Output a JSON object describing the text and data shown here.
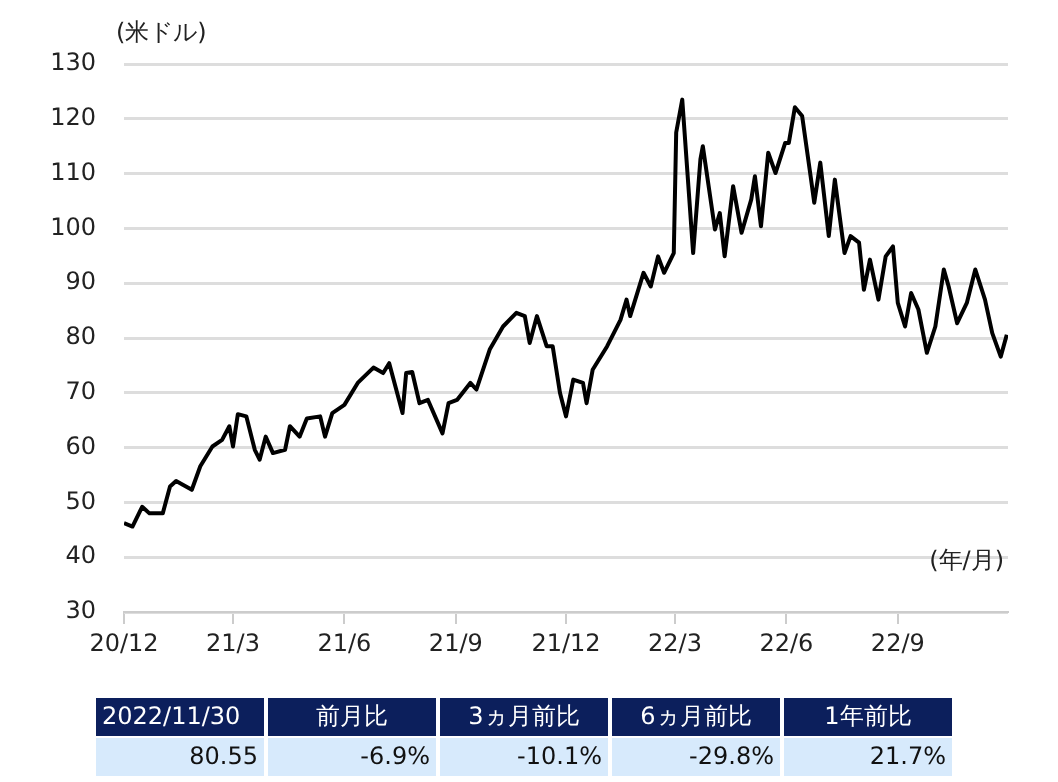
{
  "chart_data": {
    "type": "line",
    "ylabel": "(米ドル)",
    "xlabel": "(年/月)",
    "x": [
      "2020-12-01",
      "2020-12-08",
      "2020-12-16",
      "2020-12-22",
      "2021-01-02",
      "2021-01-08",
      "2021-01-13",
      "2021-01-26",
      "2021-02-02",
      "2021-02-12",
      "2021-02-20",
      "2021-02-26",
      "2021-03-01",
      "2021-03-05",
      "2021-03-12",
      "2021-03-19",
      "2021-03-23",
      "2021-03-28",
      "2021-04-03",
      "2021-04-13",
      "2021-04-17",
      "2021-04-25",
      "2021-05-01",
      "2021-05-12",
      "2021-05-16",
      "2021-05-22",
      "2021-06-01",
      "2021-06-12",
      "2021-06-25",
      "2021-07-03",
      "2021-07-08",
      "2021-07-19",
      "2021-07-22",
      "2021-07-27",
      "2021-08-02",
      "2021-08-09",
      "2021-08-21",
      "2021-08-26",
      "2021-09-02",
      "2021-09-13",
      "2021-09-18",
      "2021-09-29",
      "2021-10-10",
      "2021-10-21",
      "2021-10-28",
      "2021-11-01",
      "2021-11-07",
      "2021-11-15",
      "2021-11-20",
      "2021-11-26",
      "2021-12-01",
      "2021-12-07",
      "2021-12-15",
      "2021-12-18",
      "2021-12-23",
      "2022-01-04",
      "2022-01-15",
      "2022-01-20",
      "2022-01-23",
      "2022-02-03",
      "2022-02-09",
      "2022-02-15",
      "2022-02-20",
      "2022-02-28",
      "2022-03-02",
      "2022-03-07",
      "2022-03-16",
      "2022-03-22",
      "2022-03-24",
      "2022-04-03",
      "2022-04-07",
      "2022-04-11",
      "2022-04-18",
      "2022-04-25",
      "2022-05-03",
      "2022-05-06",
      "2022-05-11",
      "2022-05-17",
      "2022-05-23",
      "2022-05-31",
      "2022-06-03",
      "2022-06-08",
      "2022-06-14",
      "2022-06-21",
      "2022-06-24",
      "2022-06-29",
      "2022-07-06",
      "2022-07-11",
      "2022-07-19",
      "2022-07-24",
      "2022-07-31",
      "2022-08-04",
      "2022-08-09",
      "2022-08-16",
      "2022-08-22",
      "2022-08-28",
      "2022-09-01",
      "2022-09-07",
      "2022-09-12",
      "2022-09-18",
      "2022-09-25",
      "2022-10-02",
      "2022-10-09",
      "2022-10-13",
      "2022-10-20",
      "2022-10-28",
      "2022-11-04",
      "2022-11-12",
      "2022-11-18",
      "2022-11-25",
      "2022-11-30"
    ],
    "series": [
      {
        "color": "#000000",
        "values": [
          46.2,
          45.6,
          49.2,
          48,
          48,
          52.9,
          53.9,
          52.3,
          56.6,
          60.2,
          61.4,
          63.9,
          60.2,
          66.1,
          65.7,
          59.6,
          57.8,
          62,
          59,
          59.6,
          63.9,
          62,
          65.3,
          65.7,
          62,
          66.3,
          67.8,
          71.8,
          74.6,
          73.6,
          75.4,
          66.3,
          73.6,
          73.8,
          68.1,
          68.7,
          62.6,
          68.1,
          68.7,
          71.8,
          70.6,
          77.9,
          82.1,
          84.6,
          84,
          79.1,
          84,
          78.5,
          78.5,
          70,
          65.7,
          72.4,
          71.8,
          68.1,
          74.2,
          78.5,
          83.3,
          87,
          84,
          91.9,
          89.4,
          94.9,
          91.9,
          95.5,
          117.5,
          123.5,
          95.5,
          112.6,
          115,
          99.8,
          102.8,
          94.9,
          107.7,
          99.2,
          105.3,
          109.5,
          100.4,
          113.8,
          110.1,
          115.6,
          115.6,
          122.1,
          120.5,
          109.5,
          104.7,
          112,
          98.6,
          108.9,
          95.5,
          98.6,
          97.4,
          88.8,
          94.3,
          87,
          94.9,
          96.7,
          86.4,
          82.1,
          88.2,
          85.2,
          77.3,
          82.1,
          92.5,
          89.4,
          82.7,
          86.4,
          92.5,
          87,
          80.9,
          76.6,
          80.6
        ]
      }
    ],
    "xlim": [
      "2020-12-01",
      "2022-12-01"
    ],
    "xticks": [
      {
        "value": "2020-12-01",
        "label": "20/12"
      },
      {
        "value": "2021-03-01",
        "label": "21/3"
      },
      {
        "value": "2021-06-01",
        "label": "21/6"
      },
      {
        "value": "2021-09-01",
        "label": "21/9"
      },
      {
        "value": "2021-12-01",
        "label": "21/12"
      },
      {
        "value": "2022-03-01",
        "label": "22/3"
      },
      {
        "value": "2022-06-01",
        "label": "22/6"
      },
      {
        "value": "2022-09-01",
        "label": "22/9"
      }
    ],
    "ylim": [
      30,
      130
    ],
    "yticks": [
      30,
      40,
      50,
      60,
      70,
      80,
      90,
      100,
      110,
      120,
      130
    ],
    "grid": "y",
    "legend": false,
    "marker": "none",
    "line_style": "solid",
    "annotations": [
      "2022/11/30",
      "前月比",
      "3ヵ月前比",
      "6ヵ月前比",
      "1年前比",
      "80.55",
      "-6.9%",
      "-10.1%",
      "-29.8%",
      "21.7%"
    ]
  }
}
